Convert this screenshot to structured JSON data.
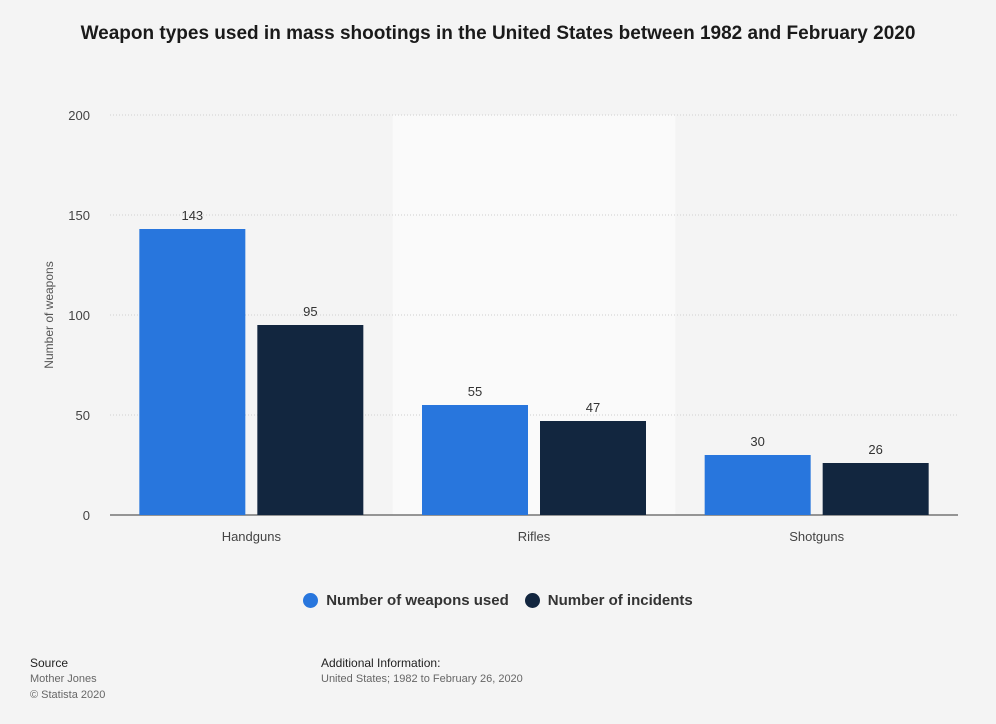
{
  "chart_data": {
    "type": "bar",
    "title": "Weapon types used in mass shootings in the United States between 1982 and February 2020",
    "ylabel": "Number of weapons",
    "xlabel": "",
    "ylim": [
      0,
      200
    ],
    "yticks": [
      0,
      50,
      100,
      150,
      200
    ],
    "categories": [
      "Handguns",
      "Rifles",
      "Shotguns"
    ],
    "series": [
      {
        "name": "Number of weapons used",
        "values": [
          143,
          55,
          30
        ],
        "color": "#2876dd"
      },
      {
        "name": "Number of incidents",
        "values": [
          95,
          47,
          26
        ],
        "color": "#12263f"
      }
    ],
    "grid": true,
    "legend_position": "bottom-center"
  },
  "footer": {
    "source_heading": "Source",
    "source_name": "Mother Jones",
    "copyright": "© Statista 2020",
    "info_heading": "Additional Information:",
    "info_text": "United States; 1982 to February 26, 2020"
  }
}
